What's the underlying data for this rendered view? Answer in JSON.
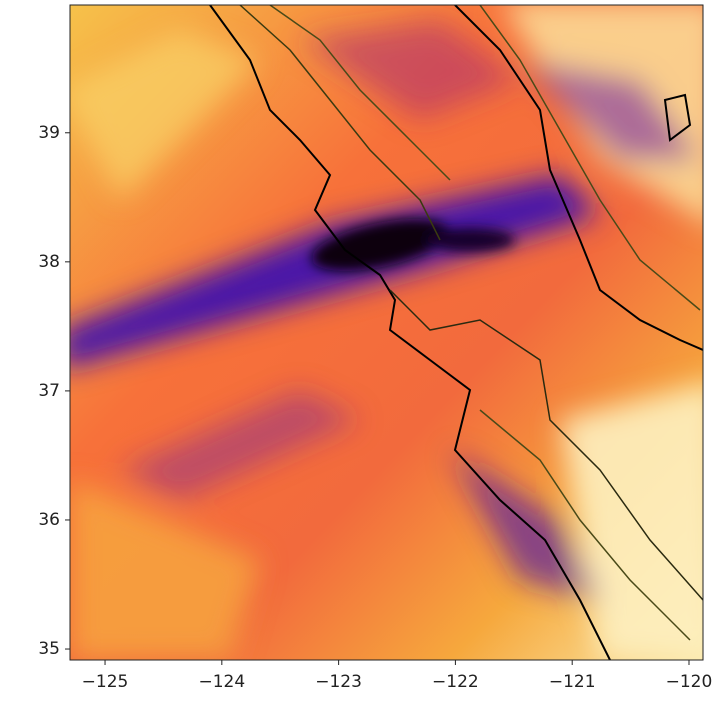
{
  "chart_data": {
    "type": "heatmap",
    "xlim": [
      -125.3,
      -119.88
    ],
    "ylim": [
      34.915,
      39.99
    ],
    "xticks": [
      {
        "value": -125,
        "label": "−125"
      },
      {
        "value": -124,
        "label": "−124"
      },
      {
        "value": -123,
        "label": "−123"
      },
      {
        "value": -122,
        "label": "−122"
      },
      {
        "value": -121,
        "label": "−121"
      },
      {
        "value": -120,
        "label": "−120"
      }
    ],
    "yticks": [
      35,
      36,
      37,
      38,
      39
    ]
  }
}
